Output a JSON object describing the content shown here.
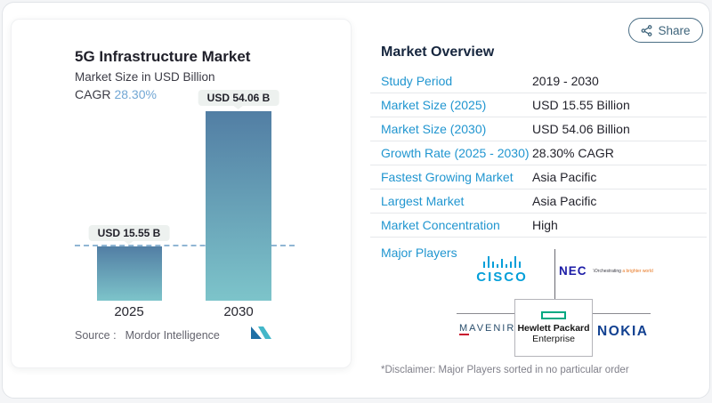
{
  "share": {
    "label": "Share"
  },
  "chart": {
    "title": "5G Infrastructure Market",
    "subtitle": "Market Size in USD Billion",
    "cagr_label": "CAGR",
    "cagr_value": "28.30%",
    "bars": [
      {
        "year": "2025",
        "label": "USD 15.55 B",
        "value": 15.55
      },
      {
        "year": "2030",
        "label": "USD 54.06 B",
        "value": 54.06
      }
    ],
    "source_label": "Source :",
    "source_value": "Mordor Intelligence"
  },
  "chart_data": {
    "type": "bar",
    "title": "5G Infrastructure Market",
    "subtitle": "Market Size in USD Billion",
    "categories": [
      "2025",
      "2030"
    ],
    "values": [
      15.55,
      54.06
    ],
    "bar_labels": [
      "USD 15.55 B",
      "USD 54.06 B"
    ],
    "cagr": "28.30%",
    "ylabel": "Market Size in USD Billion",
    "ylim": [
      0,
      54.06
    ],
    "reference_line": 15.55,
    "grid": false,
    "source": "Mordor Intelligence",
    "bar_gradient": [
      "#527ea4",
      "#7dc4ca"
    ]
  },
  "overview": {
    "title": "Market Overview",
    "rows": [
      {
        "label": "Study Period",
        "value": "2019 - 2030"
      },
      {
        "label": "Market Size (2025)",
        "value": "USD 15.55 Billion"
      },
      {
        "label": "Market Size (2030)",
        "value": "USD 54.06 Billion"
      },
      {
        "label": "Growth Rate (2025 - 2030)",
        "value": "28.30% CAGR"
      },
      {
        "label": "Fastest Growing Market",
        "value": "Asia Pacific"
      },
      {
        "label": "Largest Market",
        "value": "Asia Pacific"
      },
      {
        "label": "Market Concentration",
        "value": "High"
      }
    ],
    "major_players_label": "Major Players",
    "players": {
      "cisco": "CISCO",
      "nec": "NEC",
      "nec_tagline_prefix": "\\Orchestrating ",
      "nec_tagline_suffix": "a brighter world",
      "mavenir_first": "M",
      "mavenir_rest": "AVENIR",
      "hpe_line1": "Hewlett Packard",
      "hpe_line2": "Enterprise",
      "nokia": "NOKIA"
    },
    "disclaimer": "*Disclaimer: Major Players sorted in no particular order"
  },
  "colors": {
    "accent_blue": "#2196d0",
    "cagr_blue": "#72a7d4",
    "bar_top": "#527ea4",
    "bar_bottom": "#7dc4ca",
    "cisco_blue": "#049fd9",
    "nec_blue": "#1b1ba6",
    "nec_orange": "#e87722",
    "hpe_green": "#00a982",
    "nokia_blue": "#124191",
    "mavenir_navy": "#2a4e6c",
    "share_blue": "#3e647b"
  }
}
